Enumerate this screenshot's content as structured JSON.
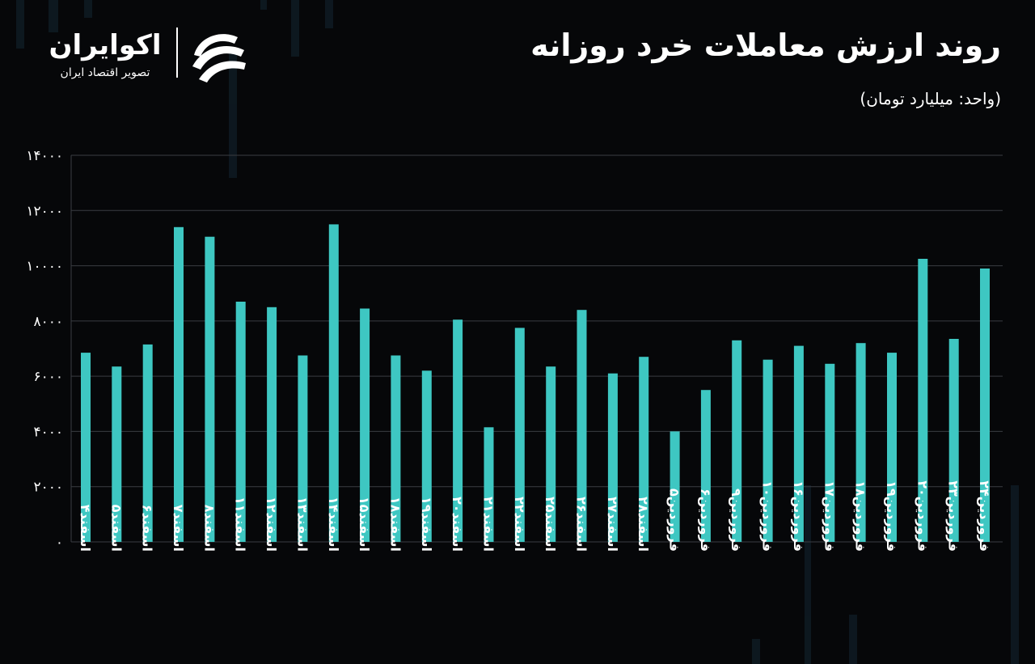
{
  "header": {
    "title": "روند ارزش معاملات خرد روزانه",
    "unit": "(واحد: میلیارد تومان)"
  },
  "logo": {
    "name": "اکوایران",
    "tagline": "تصویر اقتصاد ایران"
  },
  "colors": {
    "background": "#060709",
    "bar": "#3ec7c2",
    "grid": "#3a3d42",
    "text": "#ffffff"
  },
  "chart_data": {
    "type": "bar",
    "categories": [
      "اسفند۴",
      "اسفند۵",
      "اسفند۶",
      "اسفند۷",
      "اسفند۸",
      "اسفند۱۱",
      "اسفند۱۲",
      "اسفند۱۳",
      "اسفند۱۴",
      "اسفند۱۵",
      "اسفند۱۸",
      "اسفند۱۹",
      "اسفند۲۰",
      "اسفند۲۱",
      "اسفند۲۲",
      "اسفند۲۵",
      "اسفند۲۶",
      "اسفند۲۷",
      "اسفند۲۸",
      "فروردین۵",
      "فروردین۶",
      "فروردین۹",
      "فروردین۱۰",
      "فروردین۱۶",
      "فروردین۱۷",
      "فروردین۱۸",
      "فروردین۱۹",
      "فروردین۲۰",
      "فروردین۲۳",
      "فروردین۲۴"
    ],
    "values": [
      6850,
      6350,
      7150,
      11400,
      11050,
      8700,
      8500,
      6750,
      11500,
      8450,
      6750,
      6200,
      8050,
      4150,
      7750,
      6350,
      8400,
      6100,
      6700,
      4000,
      5500,
      7300,
      6600,
      7100,
      6450,
      7200,
      6850,
      10250,
      7350,
      9900
    ],
    "ylim": [
      0,
      14000
    ],
    "yticks": [
      0,
      2000,
      4000,
      6000,
      8000,
      10000,
      12000,
      14000
    ],
    "ytick_labels": [
      "۰",
      "۲۰۰۰",
      "۴۰۰۰",
      "۶۰۰۰",
      "۸۰۰۰",
      "۱۰۰۰۰",
      "۱۲۰۰۰",
      "۱۴۰۰۰"
    ],
    "grid": true,
    "title": "روند ارزش معاملات خرد روزانه",
    "ylabel": "",
    "xlabel": ""
  }
}
